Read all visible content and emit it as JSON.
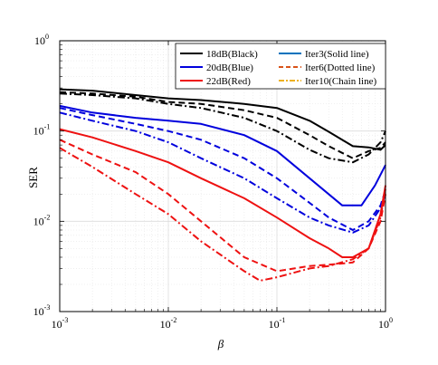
{
  "chart_data": {
    "type": "line",
    "xscale": "log",
    "yscale": "log",
    "xlim": [
      0.001,
      1
    ],
    "ylim": [
      0.001,
      1
    ],
    "grid": true,
    "xlabel": "β",
    "ylabel": "SER",
    "legend_position": "top-right",
    "x_ticks": [
      {
        "base": "10",
        "exp": "-3"
      },
      {
        "base": "10",
        "exp": "-2"
      },
      {
        "base": "10",
        "exp": "-1"
      },
      {
        "base": "10",
        "exp": "0"
      }
    ],
    "y_ticks": [
      {
        "base": "10",
        "exp": "-3"
      },
      {
        "base": "10",
        "exp": "-2"
      },
      {
        "base": "10",
        "exp": "-1"
      },
      {
        "base": "10",
        "exp": "0"
      }
    ],
    "legend_col1": [
      {
        "label": "18dB(Black)",
        "color": "#000000"
      },
      {
        "label": "20dB(Blue)",
        "color": "#0000dd"
      },
      {
        "label": "22dB(Red)",
        "color": "#ee1111"
      }
    ],
    "legend_col2": [
      {
        "label": "Iter3(Solid line)",
        "color": "#0072bd",
        "dash": "solid"
      },
      {
        "label": "Iter6(Dotted line)",
        "color": "#d95319",
        "dash": "dashed"
      },
      {
        "label": "Iter10(Chain line)",
        "color": "#edb120",
        "dash": "dashdot"
      }
    ],
    "series": [
      {
        "snr": "18dB",
        "iter": "Iter3",
        "color": "#000000",
        "dash": "solid",
        "x": [
          0.001,
          0.002,
          0.005,
          0.01,
          0.02,
          0.05,
          0.1,
          0.2,
          0.3,
          0.5,
          0.7,
          0.9,
          1.0
        ],
        "y": [
          0.29,
          0.28,
          0.25,
          0.23,
          0.22,
          0.2,
          0.18,
          0.13,
          0.098,
          0.068,
          0.066,
          0.062,
          0.07
        ]
      },
      {
        "snr": "18dB",
        "iter": "Iter6",
        "color": "#000000",
        "dash": "dashed",
        "x": [
          0.001,
          0.002,
          0.005,
          0.01,
          0.02,
          0.05,
          0.1,
          0.2,
          0.3,
          0.5,
          0.7,
          0.9,
          1.0
        ],
        "y": [
          0.27,
          0.26,
          0.24,
          0.21,
          0.2,
          0.17,
          0.14,
          0.09,
          0.068,
          0.05,
          0.06,
          0.065,
          0.075
        ]
      },
      {
        "snr": "18dB",
        "iter": "Iter10",
        "color": "#000000",
        "dash": "dashdot",
        "x": [
          0.001,
          0.002,
          0.005,
          0.01,
          0.02,
          0.05,
          0.1,
          0.2,
          0.3,
          0.5,
          0.7,
          0.9,
          1.0
        ],
        "y": [
          0.26,
          0.25,
          0.23,
          0.2,
          0.18,
          0.14,
          0.1,
          0.062,
          0.05,
          0.045,
          0.055,
          0.075,
          0.1
        ]
      },
      {
        "snr": "20dB",
        "iter": "Iter3",
        "color": "#0000dd",
        "dash": "solid",
        "x": [
          0.001,
          0.002,
          0.005,
          0.01,
          0.02,
          0.05,
          0.1,
          0.2,
          0.4,
          0.6,
          0.8,
          1.0
        ],
        "y": [
          0.19,
          0.16,
          0.14,
          0.13,
          0.12,
          0.09,
          0.06,
          0.03,
          0.015,
          0.015,
          0.025,
          0.042
        ]
      },
      {
        "snr": "20dB",
        "iter": "Iter6",
        "color": "#0000dd",
        "dash": "dashed",
        "x": [
          0.001,
          0.002,
          0.005,
          0.01,
          0.02,
          0.05,
          0.1,
          0.2,
          0.3,
          0.5,
          0.7,
          0.9,
          1.0
        ],
        "y": [
          0.18,
          0.15,
          0.12,
          0.1,
          0.08,
          0.05,
          0.03,
          0.016,
          0.011,
          0.008,
          0.01,
          0.015,
          0.022
        ]
      },
      {
        "snr": "20dB",
        "iter": "Iter10",
        "color": "#0000dd",
        "dash": "dashdot",
        "x": [
          0.001,
          0.002,
          0.005,
          0.01,
          0.02,
          0.05,
          0.1,
          0.2,
          0.3,
          0.5,
          0.7,
          0.9,
          1.0
        ],
        "y": [
          0.16,
          0.13,
          0.1,
          0.075,
          0.05,
          0.03,
          0.018,
          0.011,
          0.009,
          0.0075,
          0.009,
          0.014,
          0.02
        ]
      },
      {
        "snr": "22dB",
        "iter": "Iter3",
        "color": "#ee1111",
        "dash": "solid",
        "x": [
          0.001,
          0.002,
          0.005,
          0.01,
          0.02,
          0.05,
          0.1,
          0.2,
          0.3,
          0.4,
          0.5,
          0.7,
          0.9,
          1.0
        ],
        "y": [
          0.105,
          0.085,
          0.06,
          0.045,
          0.03,
          0.018,
          0.011,
          0.0065,
          0.005,
          0.004,
          0.004,
          0.005,
          0.012,
          0.025
        ]
      },
      {
        "snr": "22dB",
        "iter": "Iter6",
        "color": "#ee1111",
        "dash": "dashed",
        "x": [
          0.001,
          0.002,
          0.005,
          0.01,
          0.02,
          0.05,
          0.1,
          0.2,
          0.3,
          0.5,
          0.7,
          0.9,
          1.0
        ],
        "y": [
          0.08,
          0.055,
          0.035,
          0.02,
          0.01,
          0.004,
          0.0028,
          0.0032,
          0.0033,
          0.0035,
          0.005,
          0.01,
          0.02
        ]
      },
      {
        "snr": "22dB",
        "iter": "Iter10",
        "color": "#ee1111",
        "dash": "dashdot",
        "x": [
          0.001,
          0.002,
          0.005,
          0.01,
          0.02,
          0.05,
          0.07,
          0.1,
          0.2,
          0.3,
          0.5,
          0.7,
          0.9,
          1.0
        ],
        "y": [
          0.065,
          0.04,
          0.02,
          0.012,
          0.006,
          0.0028,
          0.0022,
          0.0024,
          0.003,
          0.0032,
          0.0038,
          0.005,
          0.011,
          0.023
        ]
      }
    ]
  }
}
